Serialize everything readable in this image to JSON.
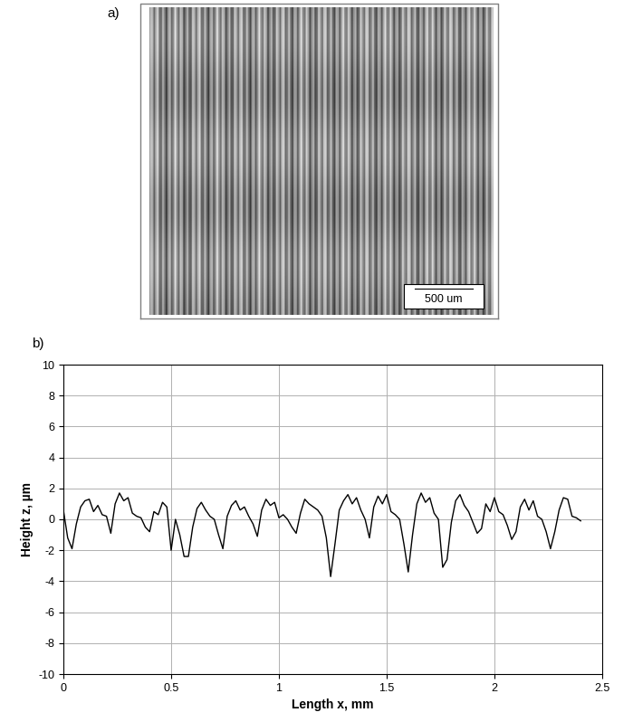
{
  "panel_labels": [
    "a)",
    "b)"
  ],
  "scale_bar_label": "500 um",
  "chart_data": {
    "type": "line",
    "x_label": "Length x, mm",
    "y_label": "Height z, µm",
    "color": "#000000",
    "grid": true,
    "xlim": [
      0,
      2.5
    ],
    "xticks": [
      0,
      0.5,
      1,
      1.5,
      2,
      2.5
    ],
    "ylim": [
      -10,
      10
    ],
    "yticks": [
      -10,
      -8,
      -6,
      -4,
      -2,
      0,
      2,
      4,
      6,
      8,
      10
    ],
    "x": [
      0.0,
      0.02,
      0.04,
      0.06,
      0.08,
      0.1,
      0.12,
      0.14,
      0.16,
      0.18,
      0.2,
      0.22,
      0.24,
      0.26,
      0.28,
      0.3,
      0.32,
      0.34,
      0.36,
      0.38,
      0.4,
      0.42,
      0.44,
      0.46,
      0.48,
      0.5,
      0.52,
      0.54,
      0.56,
      0.58,
      0.6,
      0.62,
      0.64,
      0.66,
      0.68,
      0.7,
      0.72,
      0.74,
      0.76,
      0.78,
      0.8,
      0.82,
      0.84,
      0.86,
      0.88,
      0.9,
      0.92,
      0.94,
      0.96,
      0.98,
      1.0,
      1.02,
      1.04,
      1.06,
      1.08,
      1.1,
      1.12,
      1.14,
      1.16,
      1.18,
      1.2,
      1.22,
      1.24,
      1.26,
      1.28,
      1.3,
      1.32,
      1.34,
      1.36,
      1.38,
      1.4,
      1.42,
      1.44,
      1.46,
      1.48,
      1.5,
      1.52,
      1.54,
      1.56,
      1.58,
      1.6,
      1.62,
      1.64,
      1.66,
      1.68,
      1.7,
      1.72,
      1.74,
      1.76,
      1.78,
      1.8,
      1.82,
      1.84,
      1.86,
      1.88,
      1.9,
      1.92,
      1.94,
      1.96,
      1.98,
      2.0,
      2.02,
      2.04,
      2.06,
      2.08,
      2.1,
      2.12,
      2.14,
      2.16,
      2.18,
      2.2,
      2.22,
      2.24,
      2.26,
      2.28,
      2.3,
      2.32,
      2.34,
      2.36,
      2.38,
      2.4
    ],
    "values": [
      0.6,
      -1.2,
      -1.9,
      -0.3,
      0.8,
      1.2,
      1.3,
      0.5,
      0.9,
      0.3,
      0.2,
      -0.9,
      1.0,
      1.7,
      1.2,
      1.4,
      0.4,
      0.2,
      0.1,
      -0.5,
      -0.8,
      0.5,
      0.3,
      1.1,
      0.8,
      -2.0,
      0.0,
      -1.0,
      -2.4,
      -2.4,
      -0.5,
      0.7,
      1.1,
      0.6,
      0.2,
      0.0,
      -1.0,
      -1.9,
      0.2,
      0.9,
      1.2,
      0.6,
      0.8,
      0.2,
      -0.3,
      -1.1,
      0.6,
      1.3,
      0.9,
      1.1,
      0.1,
      0.3,
      0.0,
      -0.5,
      -0.9,
      0.4,
      1.3,
      1.0,
      0.8,
      0.6,
      0.2,
      -1.2,
      -3.7,
      -1.6,
      0.6,
      1.2,
      1.6,
      1.0,
      1.4,
      0.6,
      0.0,
      -1.2,
      0.8,
      1.5,
      1.0,
      1.6,
      0.5,
      0.3,
      0.0,
      -1.6,
      -3.4,
      -1.0,
      1.0,
      1.7,
      1.1,
      1.4,
      0.4,
      0.0,
      -3.1,
      -2.6,
      -0.2,
      1.2,
      1.6,
      0.9,
      0.5,
      -0.2,
      -0.9,
      -0.6,
      1.0,
      0.5,
      1.4,
      0.5,
      0.3,
      -0.4,
      -1.3,
      -0.8,
      0.8,
      1.3,
      0.6,
      1.2,
      0.2,
      0.0,
      -0.8,
      -1.9,
      -0.8,
      0.6,
      1.4,
      1.3,
      0.2,
      0.1,
      -0.1
    ]
  }
}
